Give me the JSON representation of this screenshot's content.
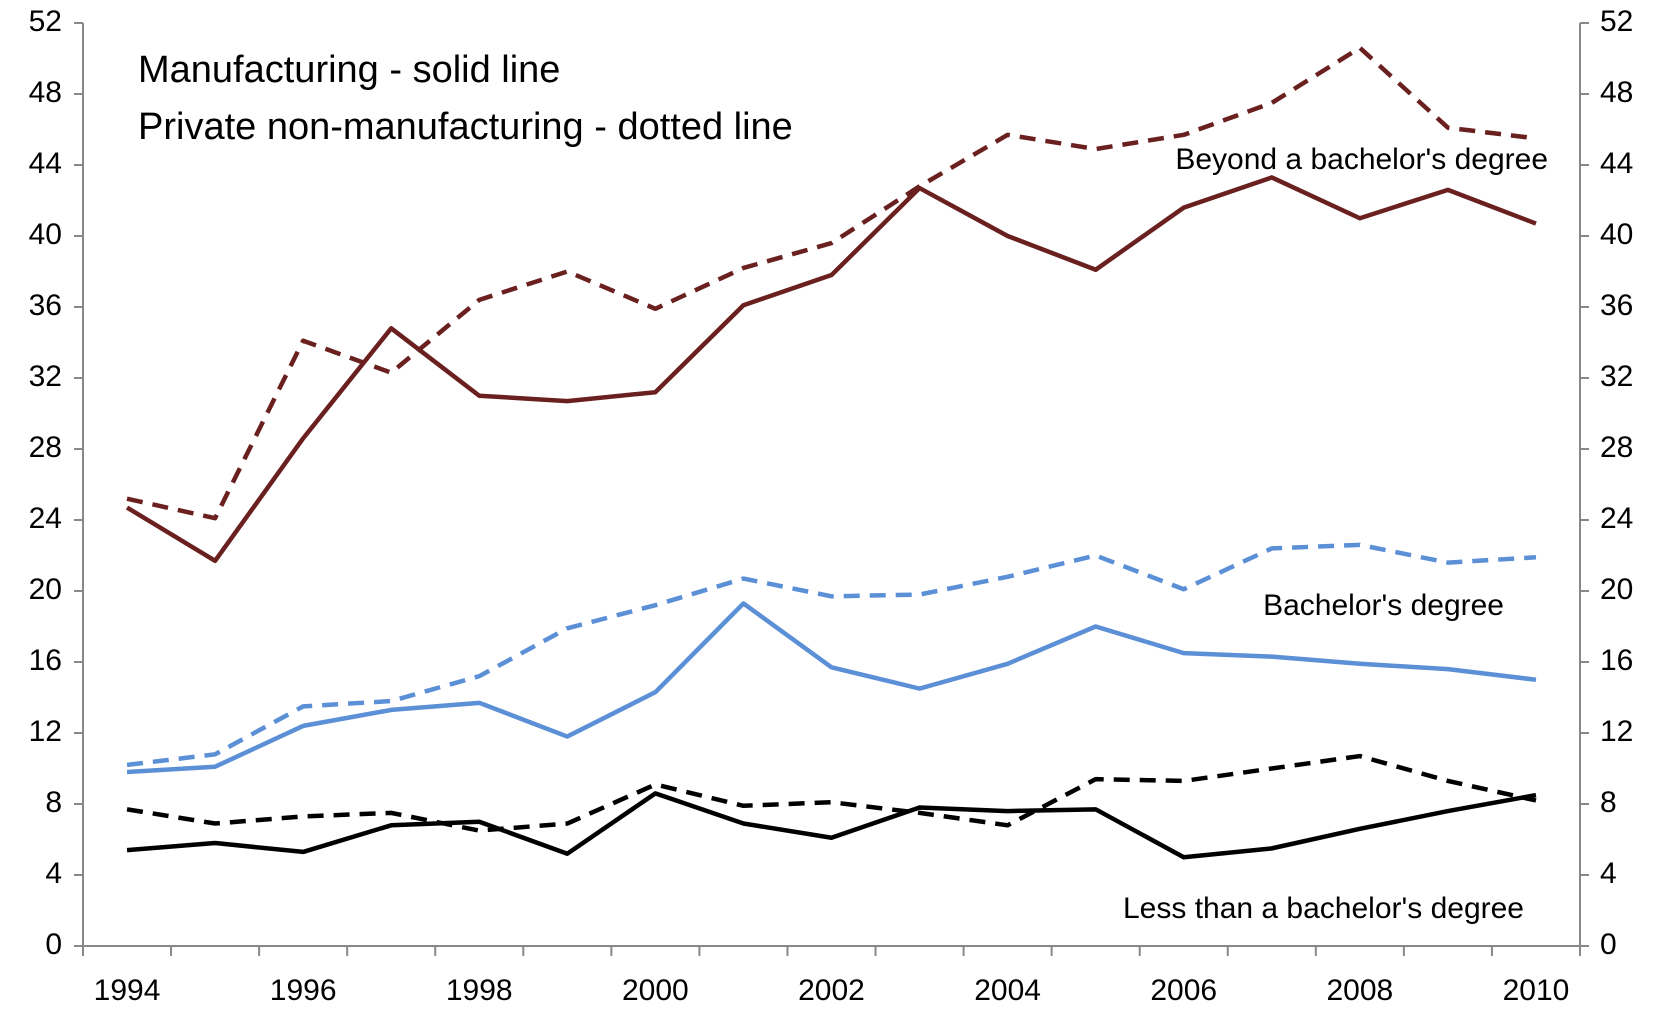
{
  "chart_data": {
    "type": "line",
    "annotations": [
      "Manufacturing - solid line",
      "Private non-manufacturing - dotted line",
      "Beyond a bachelor's degree",
      "Bachelor's degree",
      "Less than a bachelor's degree"
    ],
    "categories": [
      "1994",
      null,
      "1996",
      null,
      "1998",
      null,
      "2000",
      null,
      "2002",
      null,
      "2004",
      null,
      "2006",
      null,
      "2008",
      null,
      "2010"
    ],
    "series": [
      {
        "color": "#6b2020",
        "dashed": false,
        "values": [
          24.7,
          21.7,
          28.6,
          34.8,
          31.0,
          30.7,
          31.2,
          36.1,
          37.8,
          42.7,
          40.0,
          38.1,
          41.6,
          43.3,
          41.0,
          42.6,
          40.7
        ]
      },
      {
        "color": "#6b2020",
        "dashed": true,
        "values": [
          25.2,
          24.1,
          34.1,
          32.3,
          36.4,
          38.0,
          35.9,
          38.2,
          39.6,
          42.8,
          45.7,
          44.9,
          45.7,
          47.5,
          50.6,
          46.1,
          45.5
        ]
      },
      {
        "color": "#5b8fd6",
        "dashed": false,
        "values": [
          9.8,
          10.1,
          12.4,
          13.3,
          13.7,
          11.8,
          14.3,
          19.3,
          15.7,
          14.5,
          15.9,
          18.0,
          16.5,
          16.3,
          15.9,
          15.6,
          15.0
        ]
      },
      {
        "color": "#5b8fd6",
        "dashed": true,
        "values": [
          10.2,
          10.8,
          13.5,
          13.8,
          15.2,
          17.9,
          19.2,
          20.7,
          19.7,
          19.8,
          20.8,
          22.0,
          20.1,
          22.4,
          22.6,
          21.6,
          21.9
        ]
      },
      {
        "color": "#000000",
        "dashed": false,
        "values": [
          5.4,
          5.8,
          5.3,
          6.8,
          7.0,
          5.2,
          8.6,
          6.9,
          6.1,
          7.8,
          7.6,
          7.7,
          5.0,
          5.5,
          6.6,
          7.6,
          8.5
        ]
      },
      {
        "color": "#000000",
        "dashed": true,
        "values": [
          7.7,
          6.9,
          7.3,
          7.5,
          6.5,
          6.9,
          9.1,
          7.9,
          8.1,
          7.5,
          6.8,
          9.4,
          9.3,
          10.0,
          10.7,
          9.3,
          8.2
        ]
      }
    ],
    "ylim": [
      0,
      52
    ],
    "yticks": [
      0,
      4,
      8,
      12,
      16,
      20,
      24,
      28,
      32,
      36,
      40,
      44,
      48,
      52
    ],
    "y2lim": [
      0,
      52
    ],
    "y2ticks": [
      0,
      4,
      8,
      12,
      16,
      20,
      24,
      28,
      32,
      36,
      40,
      44,
      48,
      52
    ],
    "grid": false
  }
}
